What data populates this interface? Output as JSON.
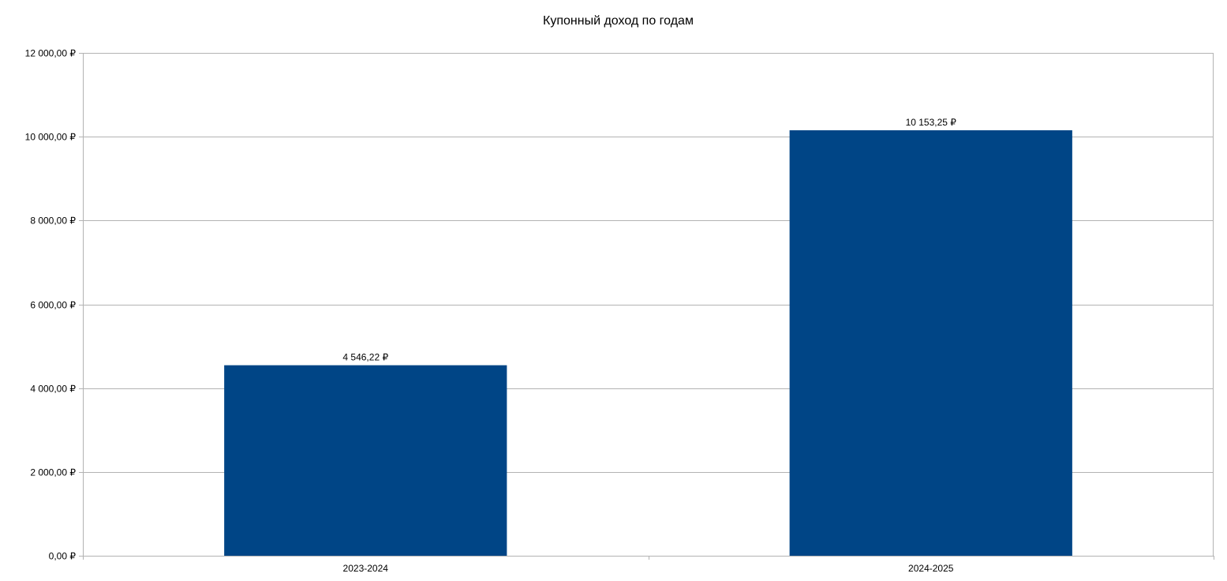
{
  "chart_data": {
    "type": "bar",
    "title": "Купонный доход по годам",
    "xlabel": "",
    "ylabel": "",
    "categories": [
      "2023-2024",
      "2024-2025"
    ],
    "values": [
      4546.22,
      10153.25
    ],
    "value_labels": [
      "4 546,22 ₽",
      "10 153,25 ₽"
    ],
    "ylim": [
      0,
      12000
    ],
    "yticks": [
      0,
      2000,
      4000,
      6000,
      8000,
      10000,
      12000
    ],
    "ytick_labels": [
      "0,00 ₽",
      "2 000,00 ₽",
      "4 000,00 ₽",
      "6 000,00 ₽",
      "8 000,00 ₽",
      "10 000,00 ₽",
      "12 000,00 ₽"
    ],
    "grid": true,
    "legend": "none",
    "colors": {
      "bar": "#004586",
      "grid": "#b3b3b3",
      "axis": "#b3b3b3"
    }
  }
}
